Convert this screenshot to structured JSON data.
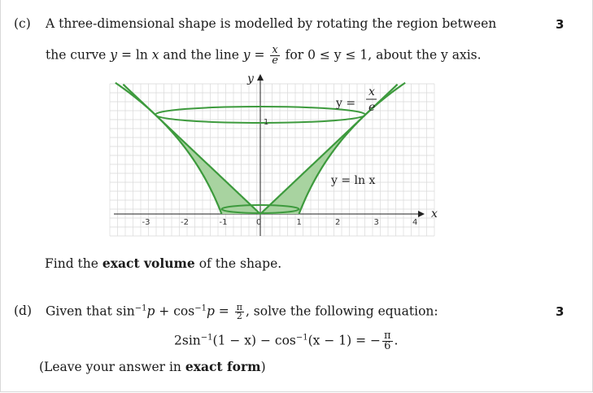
{
  "part_c": {
    "label": "(c)",
    "marks": "3",
    "line1": "A three-dimensional shape is modelled by rotating the region between",
    "line2_pre": "the curve ",
    "line2_y": "y",
    "line2_eq": " = ln ",
    "line2_x": "x",
    "line2_mid": " and the line ",
    "line2_y2": "y",
    "line2_eq2": " = ",
    "frac_num": "x",
    "frac_den": "e",
    "line2_post": " for 0 ≤ y ≤ 1, about the y axis.",
    "find_pre": "Find the ",
    "find_bold": "exact volume",
    "find_post": " of the shape."
  },
  "graph": {
    "y_axis_label": "y",
    "x_axis_label": "x",
    "y_tick": "1",
    "x_ticks": [
      "-3",
      "-2",
      "-1",
      "0",
      "1",
      "2",
      "3",
      "4"
    ],
    "line_label_pre": "y =",
    "line_label_num": "x",
    "line_label_den": "e",
    "curve_label": "y = ln x",
    "colors": {
      "curve": "#3d9a3d",
      "fill": "#a8d3a0",
      "grid": "#d9d9d9"
    }
  },
  "part_d": {
    "label": "(d)",
    "marks": "3",
    "given_pre": "Given that sin",
    "given_sup1": "−1",
    "given_mid1": "p + cos",
    "given_sup2": "−1",
    "given_mid2": "p = ",
    "given_frac_num": "π",
    "given_frac_den": "2",
    "given_post": ", solve the following equation:",
    "eq_pre": "2sin",
    "eq_sup1": "−1",
    "eq_mid": "(1 − x) − cos",
    "eq_sup2": "−1",
    "eq_mid2": "(x − 1) = −",
    "eq_frac_num": "π",
    "eq_frac_den": "6",
    "eq_post": ".",
    "leave_pre": "(Leave your answer in ",
    "leave_bold": "exact form",
    "leave_post": ")"
  }
}
